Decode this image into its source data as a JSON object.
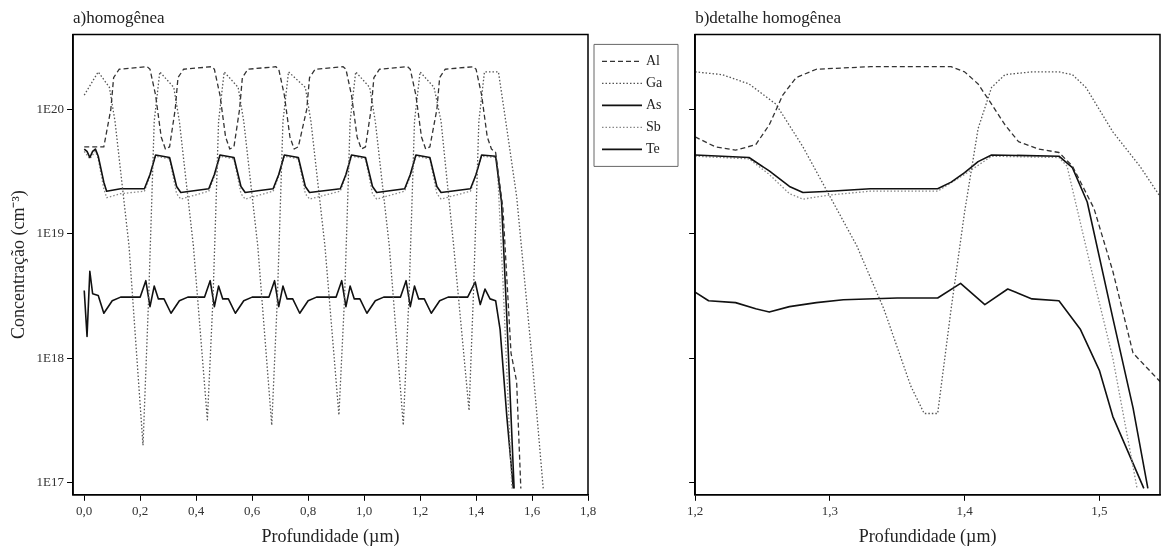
{
  "chart_data": [
    {
      "type": "line",
      "title": "a)homogênea",
      "xlabel": "Profundidade (µm)",
      "ylabel": "Concentração (cm⁻³)",
      "log": "y",
      "grid": false,
      "legend": "top right",
      "xlim": [
        -0.04,
        1.8
      ],
      "ylim": [
        8e+16,
        4e+20
      ],
      "xticks": [
        {
          "value": 0,
          "label": "0,0"
        },
        {
          "value": 0.2,
          "label": "0,2"
        },
        {
          "value": 0.4,
          "label": "0,4"
        },
        {
          "value": 0.6,
          "label": "0,6"
        },
        {
          "value": 0.8,
          "label": "0,8"
        },
        {
          "value": 1.0,
          "label": "1,0"
        },
        {
          "value": 1.2,
          "label": "1,2"
        },
        {
          "value": 1.4,
          "label": "1,4"
        },
        {
          "value": 1.6,
          "label": "1,6"
        },
        {
          "value": 1.8,
          "label": "1,8"
        }
      ],
      "yticks": [
        {
          "value": 1e+17,
          "label": "1E17"
        },
        {
          "value": 1e+18,
          "label": "1E18"
        },
        {
          "value": 1e+19,
          "label": "1E19"
        },
        {
          "value": 1e+20,
          "label": "1E20"
        }
      ],
      "series": [
        {
          "name": "Al",
          "color": "#333333",
          "line_style": "dashed",
          "x": [
            0,
            0.07,
            0.095,
            0.105,
            0.125,
            0.225,
            0.235,
            0.255,
            0.275,
            0.29,
            0.305,
            0.325,
            0.335,
            0.355,
            0.455,
            0.465,
            0.485,
            0.505,
            0.52,
            0.535,
            0.555,
            0.565,
            0.585,
            0.685,
            0.695,
            0.715,
            0.735,
            0.75,
            0.765,
            0.795,
            0.805,
            0.825,
            0.925,
            0.935,
            0.955,
            0.975,
            0.99,
            1.005,
            1.025,
            1.035,
            1.055,
            1.155,
            1.165,
            1.185,
            1.205,
            1.22,
            1.235,
            1.26,
            1.27,
            1.29,
            1.39,
            1.4,
            1.42,
            1.44,
            1.455,
            1.47,
            1.496,
            1.525,
            1.545,
            1.56
          ],
          "values": [
            5e+19,
            5e+19,
            1e+20,
            1.8e+20,
            2.1e+20,
            2.2e+20,
            2.1e+20,
            1.3e+20,
            6e+19,
            4.8e+19,
            5e+19,
            1e+20,
            1.8e+20,
            2.1e+20,
            2.2e+20,
            2.1e+20,
            1.3e+20,
            6e+19,
            4.8e+19,
            5e+19,
            1e+20,
            1.8e+20,
            2.1e+20,
            2.2e+20,
            2.1e+20,
            1.3e+20,
            6e+19,
            4.8e+19,
            5e+19,
            1e+20,
            1.8e+20,
            2.1e+20,
            2.2e+20,
            2.1e+20,
            1.3e+20,
            6e+19,
            4.8e+19,
            5e+19,
            1e+20,
            1.8e+20,
            2.1e+20,
            2.2e+20,
            2.1e+20,
            1.3e+20,
            6e+19,
            4.8e+19,
            5e+19,
            1e+20,
            1.8e+20,
            2.1e+20,
            2.2e+20,
            2.1e+20,
            1.3e+20,
            6e+19,
            4.8e+19,
            4.5e+19,
            1.6e+19,
            1.1e+18,
            6.5e+17,
            9e+16
          ]
        },
        {
          "name": "Ga",
          "color": "#555555",
          "line_style": "dotted",
          "x": [
            0,
            0.05,
            0.09,
            0.11,
            0.16,
            0.21,
            0.23,
            0.24,
            0.25,
            0.27,
            0.32,
            0.34,
            0.39,
            0.44,
            0.46,
            0.47,
            0.48,
            0.5,
            0.55,
            0.57,
            0.62,
            0.67,
            0.69,
            0.7,
            0.71,
            0.73,
            0.79,
            0.81,
            0.86,
            0.91,
            0.93,
            0.94,
            0.95,
            0.97,
            1.02,
            1.04,
            1.09,
            1.14,
            1.16,
            1.17,
            1.18,
            1.2,
            1.25,
            1.275,
            1.32,
            1.375,
            1.39,
            1.4,
            1.41,
            1.43,
            1.48,
            1.51,
            1.545,
            1.6,
            1.64
          ],
          "values": [
            1.3e+20,
            2e+20,
            1.5e+20,
            8e+19,
            8e+18,
            2e+17,
            3e+18,
            1.5e+19,
            8e+19,
            2e+20,
            1.5e+20,
            8e+19,
            8e+18,
            3.2e+17,
            3e+18,
            1.5e+19,
            8e+19,
            2e+20,
            1.5e+20,
            8e+19,
            8e+18,
            2.9e+17,
            3e+18,
            1.5e+19,
            8e+19,
            2e+20,
            1.5e+20,
            8e+19,
            8e+18,
            3.5e+17,
            3e+18,
            1.5e+19,
            8e+19,
            2e+20,
            1.5e+20,
            8e+19,
            8e+18,
            2.9e+17,
            3e+18,
            1.5e+19,
            8e+19,
            2e+20,
            1.5e+20,
            8e+19,
            8e+18,
            3.8e+17,
            3e+18,
            1.5e+19,
            8e+19,
            2e+20,
            2e+20,
            7e+19,
            2e+19,
            1e+18,
            9e+16
          ]
        },
        {
          "name": "As",
          "color": "#111111",
          "line_style": "solid",
          "x": [
            0,
            0.01,
            0.02,
            0.03,
            0.04,
            0.05,
            0.07,
            0.08,
            0.13,
            0.215,
            0.235,
            0.255,
            0.305,
            0.33,
            0.345,
            0.445,
            0.465,
            0.485,
            0.535,
            0.56,
            0.575,
            0.675,
            0.695,
            0.715,
            0.765,
            0.79,
            0.805,
            0.915,
            0.935,
            0.955,
            1.005,
            1.03,
            1.045,
            1.145,
            1.165,
            1.185,
            1.235,
            1.26,
            1.275,
            1.38,
            1.4,
            1.42,
            1.47,
            1.491,
            1.51,
            1.536
          ],
          "values": [
            4.8e+19,
            4.6e+19,
            4.1e+19,
            4.6e+19,
            4.8e+19,
            4.2e+19,
            2.6e+19,
            2.2e+19,
            2.3e+19,
            2.3e+19,
            3e+19,
            4.3e+19,
            4.1e+19,
            2.4e+19,
            2.15e+19,
            2.3e+19,
            3e+19,
            4.3e+19,
            4.1e+19,
            2.4e+19,
            2.15e+19,
            2.3e+19,
            3e+19,
            4.3e+19,
            4.1e+19,
            2.4e+19,
            2.15e+19,
            2.3e+19,
            3e+19,
            4.3e+19,
            4.1e+19,
            2.4e+19,
            2.15e+19,
            2.3e+19,
            3e+19,
            4.3e+19,
            4.1e+19,
            2.4e+19,
            2.15e+19,
            2.3e+19,
            3e+19,
            4.3e+19,
            4.2e+19,
            1.8e+19,
            2.1e+18,
            9e+16
          ]
        },
        {
          "name": "Sb",
          "color": "#888888",
          "line_style": "dotted",
          "x": [
            0,
            0.02,
            0.04,
            0.05,
            0.07,
            0.08,
            0.13,
            0.215,
            0.235,
            0.255,
            0.305,
            0.33,
            0.345,
            0.445,
            0.465,
            0.485,
            0.535,
            0.56,
            0.575,
            0.675,
            0.695,
            0.715,
            0.765,
            0.79,
            0.805,
            0.915,
            0.935,
            0.955,
            1.005,
            1.03,
            1.045,
            1.145,
            1.165,
            1.185,
            1.235,
            1.26,
            1.275,
            1.38,
            1.4,
            1.42,
            1.47,
            1.476,
            1.496,
            1.528
          ],
          "values": [
            4.6e+19,
            4e+19,
            4.6e+19,
            4e+19,
            2.3e+19,
            1.95e+19,
            2.1e+19,
            2.2e+19,
            2.9e+19,
            4.2e+19,
            4e+19,
            2.1e+19,
            1.9e+19,
            2.2e+19,
            2.9e+19,
            4.2e+19,
            4e+19,
            2.1e+19,
            1.9e+19,
            2.2e+19,
            2.9e+19,
            4.2e+19,
            4e+19,
            2.1e+19,
            1.9e+19,
            2.2e+19,
            2.9e+19,
            4.2e+19,
            4e+19,
            2.1e+19,
            1.9e+19,
            2.2e+19,
            2.9e+19,
            4.2e+19,
            4e+19,
            2.1e+19,
            1.9e+19,
            2.2e+19,
            3e+19,
            4.2e+19,
            4.1e+19,
            3.5e+19,
            4.2e+18,
            9e+16
          ]
        },
        {
          "name": "Te",
          "color": "#111111",
          "line_style": "solid",
          "x": [
            0,
            0.01,
            0.02,
            0.03,
            0.05,
            0.07,
            0.1,
            0.13,
            0.2,
            0.22,
            0.235,
            0.25,
            0.265,
            0.285,
            0.31,
            0.34,
            0.37,
            0.43,
            0.45,
            0.465,
            0.48,
            0.495,
            0.515,
            0.54,
            0.57,
            0.6,
            0.66,
            0.68,
            0.695,
            0.71,
            0.725,
            0.745,
            0.77,
            0.8,
            0.83,
            0.9,
            0.92,
            0.935,
            0.95,
            0.965,
            0.985,
            1.01,
            1.04,
            1.07,
            1.13,
            1.15,
            1.165,
            1.18,
            1.195,
            1.215,
            1.24,
            1.27,
            1.3,
            1.37,
            1.397,
            1.415,
            1.432,
            1.45,
            1.47,
            1.486,
            1.51,
            1.533
          ],
          "values": [
            3.5e+18,
            1.5e+18,
            5e+18,
            3.3e+18,
            3.2e+18,
            2.3e+18,
            2.9e+18,
            3.1e+18,
            3.1e+18,
            4.2e+18,
            2.6e+18,
            3.8e+18,
            3e+18,
            3e+18,
            2.3e+18,
            2.9e+18,
            3.1e+18,
            3.1e+18,
            4.2e+18,
            2.6e+18,
            3.8e+18,
            3e+18,
            3e+18,
            2.3e+18,
            2.9e+18,
            3.1e+18,
            3.1e+18,
            4.2e+18,
            2.6e+18,
            3.8e+18,
            3e+18,
            3e+18,
            2.3e+18,
            2.9e+18,
            3.1e+18,
            3.1e+18,
            4.2e+18,
            2.6e+18,
            3.8e+18,
            3e+18,
            3e+18,
            2.3e+18,
            2.9e+18,
            3.1e+18,
            3.1e+18,
            4.2e+18,
            2.6e+18,
            3.8e+18,
            3e+18,
            3e+18,
            2.3e+18,
            2.9e+18,
            3.1e+18,
            3.1e+18,
            4.1e+18,
            2.7e+18,
            3.6e+18,
            3e+18,
            2.9e+18,
            1.7e+18,
            3.4e+17,
            9e+16
          ]
        }
      ]
    },
    {
      "type": "line",
      "title": "b)detalhe homogênea",
      "xlabel": "Profundidade (µm)",
      "log": "y",
      "grid": false,
      "tick_labels": "x",
      "xlim": [
        1.2,
        1.545
      ],
      "ylim": [
        8e+16,
        4e+20
      ],
      "xticks": [
        {
          "value": 1.2,
          "label": "1,2"
        },
        {
          "value": 1.3,
          "label": "1,3"
        },
        {
          "value": 1.4,
          "label": "1,4"
        },
        {
          "value": 1.5,
          "label": "1,5"
        }
      ],
      "yticks": [
        {
          "value": 1e+17,
          "label": null
        },
        {
          "value": 1e+18,
          "label": null
        },
        {
          "value": 1e+19,
          "label": null
        },
        {
          "value": 1e+20,
          "label": null
        }
      ],
      "series": [
        {
          "color": "#333333",
          "line_style": "dashed",
          "x": [
            1.2,
            1.215,
            1.23,
            1.245,
            1.255,
            1.265,
            1.275,
            1.29,
            1.33,
            1.39,
            1.4,
            1.41,
            1.42,
            1.43,
            1.44,
            1.455,
            1.47,
            1.48,
            1.496,
            1.51,
            1.525,
            1.545
          ],
          "values": [
            6e+19,
            5e+19,
            4.7e+19,
            5.2e+19,
            7.5e+19,
            1.3e+20,
            1.8e+20,
            2.1e+20,
            2.2e+20,
            2.2e+20,
            2e+20,
            1.6e+20,
            1.1e+20,
            7.5e+19,
            5.5e+19,
            4.8e+19,
            4.5e+19,
            3.5e+19,
            1.6e+19,
            5e+18,
            1.1e+18,
            6.5e+17
          ]
        },
        {
          "color": "#555555",
          "line_style": "dotted",
          "x": [
            1.2,
            1.22,
            1.24,
            1.26,
            1.28,
            1.3,
            1.32,
            1.34,
            1.36,
            1.37,
            1.38,
            1.39,
            1.4,
            1.41,
            1.42,
            1.43,
            1.45,
            1.47,
            1.48,
            1.49,
            1.51,
            1.53,
            1.545
          ],
          "values": [
            2e+20,
            1.9e+20,
            1.6e+20,
            1.1e+20,
            5e+19,
            2e+19,
            8e+18,
            2.5e+18,
            6e+17,
            3.6e+17,
            3.6e+17,
            2.5e+18,
            1.5e+19,
            7e+19,
            1.5e+20,
            1.9e+20,
            2e+20,
            2e+20,
            1.9e+20,
            1.5e+20,
            6.6e+19,
            3.5e+19,
            2e+19
          ]
        },
        {
          "color": "#111111",
          "line_style": "solid",
          "x": [
            1.2,
            1.24,
            1.255,
            1.27,
            1.28,
            1.3,
            1.33,
            1.38,
            1.39,
            1.4,
            1.41,
            1.42,
            1.47,
            1.48,
            1.491,
            1.51,
            1.525,
            1.536
          ],
          "values": [
            4.3e+19,
            4.1e+19,
            3.2e+19,
            2.4e+19,
            2.15e+19,
            2.2e+19,
            2.3e+19,
            2.3e+19,
            2.6e+19,
            3.1e+19,
            3.8e+19,
            4.3e+19,
            4.2e+19,
            3.4e+19,
            1.8e+19,
            2.1e+18,
            4e+17,
            9e+16
          ]
        },
        {
          "color": "#888888",
          "line_style": "dotted",
          "x": [
            1.2,
            1.24,
            1.255,
            1.27,
            1.28,
            1.3,
            1.33,
            1.38,
            1.4,
            1.42,
            1.47,
            1.476,
            1.496,
            1.51,
            1.528
          ],
          "values": [
            4.2e+19,
            4e+19,
            3e+19,
            2.1e+19,
            1.9e+19,
            2.05e+19,
            2.2e+19,
            2.2e+19,
            3e+19,
            4.2e+19,
            4.1e+19,
            3.5e+19,
            4.2e+18,
            1e+18,
            9e+16
          ]
        },
        {
          "color": "#111111",
          "line_style": "solid",
          "x": [
            1.2,
            1.21,
            1.23,
            1.245,
            1.255,
            1.27,
            1.29,
            1.31,
            1.35,
            1.38,
            1.397,
            1.415,
            1.432,
            1.45,
            1.47,
            1.486,
            1.5,
            1.51,
            1.533
          ],
          "values": [
            3.4e+18,
            2.9e+18,
            2.8e+18,
            2.5e+18,
            2.35e+18,
            2.6e+18,
            2.8e+18,
            2.95e+18,
            3.05e+18,
            3.05e+18,
            4e+18,
            2.7e+18,
            3.6e+18,
            3e+18,
            2.9e+18,
            1.7e+18,
            8e+17,
            3.4e+17,
            9e+16
          ]
        }
      ]
    }
  ]
}
